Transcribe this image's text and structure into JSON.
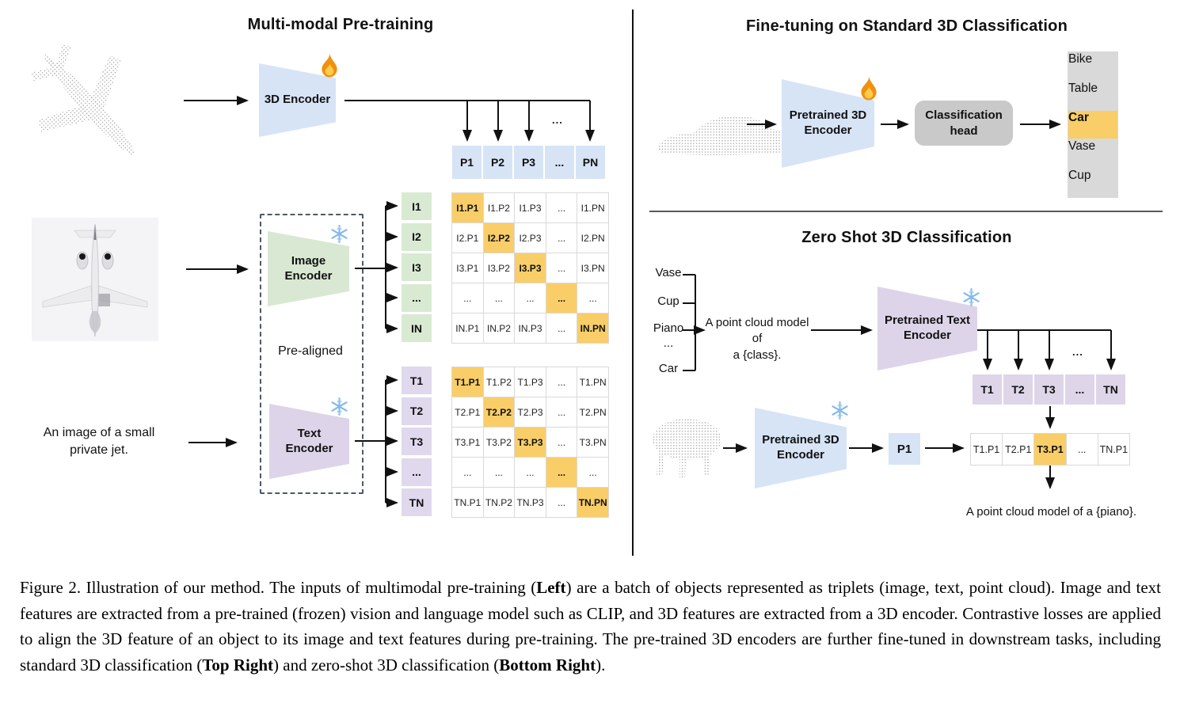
{
  "left": {
    "title": "Multi-modal Pre-training",
    "encoder_3d_label": "3D Encoder",
    "image_encoder_label": "Image Encoder",
    "text_encoder_label": "Text Encoder",
    "prealigned_label": "Pre-aligned",
    "image_caption_line1": "An image of a small",
    "image_caption_line2": "private jet.",
    "dots": "...",
    "p_row": [
      "P1",
      "P2",
      "P3",
      "...",
      "PN"
    ],
    "i_col": [
      "I1",
      "I2",
      "I3",
      "...",
      "IN"
    ],
    "t_col": [
      "T1",
      "T2",
      "T3",
      "...",
      "TN"
    ],
    "i_matrix": [
      [
        "I1.P1",
        "I1.P2",
        "I1.P3",
        "...",
        "I1.PN"
      ],
      [
        "I2.P1",
        "I2.P2",
        "I2.P3",
        "...",
        "I2.PN"
      ],
      [
        "I3.P1",
        "I3.P2",
        "I3.P3",
        "...",
        "I3.PN"
      ],
      [
        "...",
        "...",
        "...",
        "...",
        "..."
      ],
      [
        "IN.P1",
        "IN.P2",
        "IN.P3",
        "...",
        "IN.PN"
      ]
    ],
    "t_matrix": [
      [
        "T1.P1",
        "T1.P2",
        "T1.P3",
        "...",
        "T1.PN"
      ],
      [
        "T2.P1",
        "T2.P2",
        "T2.P3",
        "...",
        "T2.PN"
      ],
      [
        "T3.P1",
        "T3.P2",
        "T3.P3",
        "...",
        "T3.PN"
      ],
      [
        "...",
        "...",
        "...",
        "...",
        "..."
      ],
      [
        "TN.P1",
        "TN.P2",
        "TN.P3",
        "...",
        "TN.PN"
      ]
    ]
  },
  "top_right": {
    "title": "Fine-tuning on Standard 3D Classification",
    "encoder_label": "Pretrained 3D Encoder",
    "head_label": "Classification head",
    "classes": [
      "Bike",
      "Table",
      "Car",
      "Vase",
      "Cup"
    ],
    "highlighted_class_index": 2
  },
  "bottom_right": {
    "title": "Zero Shot 3D Classification",
    "class_list": [
      "Vase",
      "Cup",
      "Piano",
      "...",
      "Car"
    ],
    "prompt_line1": "A point cloud model of",
    "prompt_line2": "a {class}.",
    "text_encoder_label": "Pretrained Text Encoder",
    "encoder_3d_label": "Pretrained 3D Encoder",
    "p_cell": "P1",
    "dots": "...",
    "t_row": [
      "T1",
      "T2",
      "T3",
      "...",
      "TN"
    ],
    "result_row": [
      "T1.P1",
      "T2.P1",
      "T3.P1",
      "...",
      "TN.P1"
    ],
    "result_highlight_index": 2,
    "output_text": "A point cloud model of a {piano}."
  },
  "caption": {
    "segments": [
      {
        "t": "Figure 2. Illustration of our method. The inputs of multimodal pre-training ("
      },
      {
        "t": "Left",
        "b": true
      },
      {
        "t": ") are a batch of objects represented as triplets (image, text, point cloud). Image and text features are extracted from a pre-trained (frozen) vision and language model such as CLIP, and 3D features are extracted from a 3D encoder. Contrastive losses are applied to align the 3D feature of an object to its image and text features during pre-training. The pre-trained 3D encoders are further fine-tuned in downstream tasks, including standard 3D classification ("
      },
      {
        "t": "Top Right",
        "b": true
      },
      {
        "t": ") and zero-shot 3D classification ("
      },
      {
        "t": "Bottom Right",
        "b": true
      },
      {
        "t": ")."
      }
    ]
  },
  "icons": {
    "trainable": "flame-icon",
    "frozen": "snowflake-icon"
  },
  "colors": {
    "encoder_blue": "#d7e4f6",
    "encoder_green": "#d9e8d2",
    "encoder_purple": "#ded4e9",
    "highlight_orange": "#f9ce68",
    "head_gray": "#c9c9c9"
  }
}
